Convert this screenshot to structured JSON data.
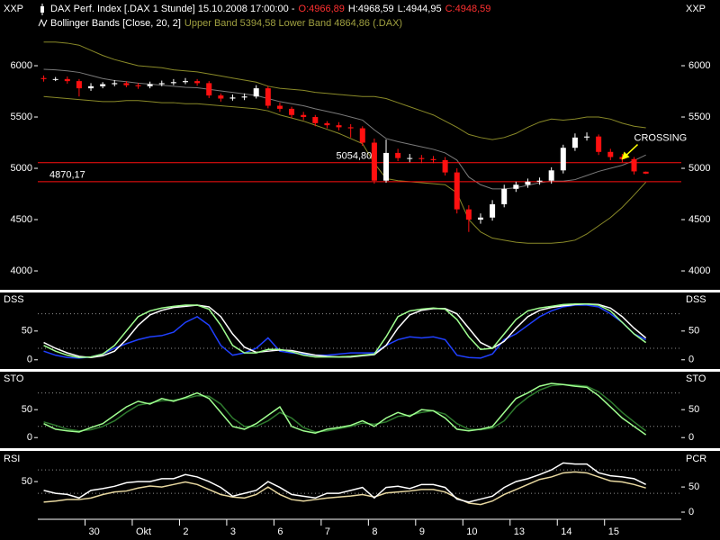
{
  "chart_data": [
    {
      "type": "candlestick",
      "title_parts": [
        "DAX Perf. Index [.DAX  1 Stunde] 15.10.2008 17:00:00 -",
        "O:4966,89",
        "H:4968,59",
        "L:4944,95",
        "C:4948,59"
      ],
      "title_colors": [
        "#ffffff",
        "#ff3030",
        "#ffffff",
        "#ffffff",
        "#ff3030"
      ],
      "subtitle_parts": [
        "Bollinger Bands [Close, 20, 2]",
        "Upper Band 5394,58 Lower Band 4864,86 (.DAX)"
      ],
      "subtitle_colors": [
        "#ffffff",
        "#a0a040"
      ],
      "axis_label": "XXP",
      "ylim": [
        3816,
        6623
      ],
      "yticks": [
        4000,
        4500,
        5000,
        5500,
        6000
      ],
      "up_color": "#ffffff",
      "down_color": "#ff1010",
      "open": [
        5880,
        5870,
        5870,
        5850,
        5780,
        5800,
        5820,
        5830,
        5810,
        5800,
        5820,
        5830,
        5840,
        5850,
        5830,
        5710,
        5680,
        5690,
        5700,
        5780,
        5610,
        5580,
        5520,
        5500,
        5440,
        5420,
        5400,
        5390,
        5250,
        4880,
        5150,
        5100,
        5100,
        5090,
        5080,
        4960,
        4600,
        4500,
        4520,
        4650,
        4800,
        4840,
        4870,
        4880,
        4980,
        5200,
        5300,
        5310,
        5160,
        5110,
        5090,
        4966.89
      ],
      "high": [
        5905,
        5890,
        5895,
        5870,
        5830,
        5840,
        5860,
        5850,
        5830,
        5845,
        5855,
        5870,
        5880,
        5870,
        5850,
        5730,
        5720,
        5730,
        5810,
        5800,
        5640,
        5600,
        5550,
        5520,
        5460,
        5450,
        5430,
        5410,
        5290,
        5280,
        5190,
        5140,
        5130,
        5120,
        5110,
        5000,
        4640,
        4560,
        4690,
        4840,
        4870,
        4900,
        4910,
        5010,
        5230,
        5340,
        5350,
        5330,
        5190,
        5140,
        5110,
        4968.59
      ],
      "low": [
        5845,
        5850,
        5825,
        5700,
        5755,
        5780,
        5800,
        5790,
        5775,
        5780,
        5800,
        5810,
        5820,
        5805,
        5685,
        5650,
        5660,
        5665,
        5680,
        5585,
        5550,
        5490,
        5470,
        5410,
        5390,
        5370,
        5300,
        5220,
        4850,
        4860,
        5070,
        5060,
        5050,
        5050,
        4930,
        4560,
        4380,
        4460,
        4490,
        4620,
        4770,
        4810,
        4840,
        4850,
        4950,
        5170,
        5270,
        5130,
        5080,
        5060,
        4940,
        4944.95
      ],
      "close": [
        5870,
        5870,
        5850,
        5780,
        5800,
        5820,
        5830,
        5810,
        5800,
        5820,
        5830,
        5840,
        5850,
        5830,
        5710,
        5680,
        5690,
        5700,
        5780,
        5610,
        5580,
        5520,
        5500,
        5440,
        5420,
        5400,
        5390,
        5250,
        4880,
        5150,
        5100,
        5100,
        5090,
        5080,
        4960,
        4600,
        4500,
        4520,
        4650,
        4800,
        4840,
        4870,
        4880,
        4980,
        5200,
        5300,
        5310,
        5160,
        5110,
        5090,
        4970,
        4948.59
      ],
      "bands": {
        "color": "#8a8a28",
        "middle_color": "#7a7a7a",
        "upper": [
          6230,
          6230,
          6220,
          6200,
          6150,
          6100,
          6060,
          6030,
          6000,
          5990,
          5980,
          5960,
          5950,
          5940,
          5920,
          5900,
          5880,
          5860,
          5840,
          5800,
          5780,
          5770,
          5760,
          5740,
          5730,
          5720,
          5710,
          5700,
          5700,
          5680,
          5640,
          5600,
          5560,
          5520,
          5460,
          5400,
          5330,
          5300,
          5280,
          5300,
          5340,
          5400,
          5450,
          5480,
          5470,
          5480,
          5500,
          5500,
          5480,
          5440,
          5410,
          5394.58
        ],
        "middle": [
          5965,
          5960,
          5950,
          5935,
          5905,
          5875,
          5855,
          5845,
          5830,
          5820,
          5810,
          5800,
          5790,
          5785,
          5770,
          5755,
          5740,
          5725,
          5710,
          5680,
          5650,
          5630,
          5610,
          5580,
          5555,
          5530,
          5500,
          5470,
          5375,
          5290,
          5260,
          5235,
          5210,
          5185,
          5150,
          5080,
          4915,
          4840,
          4800,
          4800,
          4810,
          4835,
          4860,
          4875,
          4875,
          4890,
          4930,
          4970,
          5000,
          5030,
          5075,
          5130
        ],
        "lower": [
          5700,
          5690,
          5680,
          5670,
          5660,
          5650,
          5650,
          5660,
          5660,
          5650,
          5640,
          5640,
          5630,
          5630,
          5620,
          5610,
          5600,
          5590,
          5580,
          5560,
          5520,
          5490,
          5460,
          5420,
          5380,
          5340,
          5290,
          5240,
          5050,
          4900,
          4880,
          4870,
          4860,
          4850,
          4840,
          4760,
          4500,
          4380,
          4320,
          4300,
          4280,
          4270,
          4270,
          4270,
          4280,
          4300,
          4360,
          4440,
          4520,
          4620,
          4740,
          4864.86
        ]
      },
      "hlines": [
        {
          "value": 5054.8,
          "label": "5054,80"
        },
        {
          "value": 4870.17,
          "label": "4870,17"
        }
      ],
      "hline_color": "#ff1010",
      "annotations": [
        {
          "text": "CROSSING",
          "x": 50,
          "y": 5250,
          "color": "#ffff00"
        }
      ]
    },
    {
      "type": "line",
      "label": "DSS",
      "ylim": [
        -16,
        117
      ],
      "yticks": [
        0,
        50
      ],
      "reference_lines": [
        20,
        80
      ],
      "series": [
        {
          "color": "#2040ff",
          "values": [
            15,
            8,
            4,
            3,
            5,
            10,
            20,
            28,
            35,
            40,
            42,
            48,
            65,
            75,
            60,
            25,
            8,
            12,
            20,
            38,
            15,
            12,
            10,
            8,
            8,
            10,
            12,
            12,
            12,
            25,
            35,
            40,
            38,
            40,
            35,
            8,
            4,
            3,
            10,
            35,
            45,
            60,
            75,
            85,
            92,
            95,
            95,
            92,
            80,
            65,
            45,
            35
          ]
        },
        {
          "color": "#ffffff",
          "values": [
            30,
            20,
            12,
            6,
            4,
            7,
            15,
            35,
            60,
            78,
            86,
            91,
            93,
            95,
            92,
            75,
            45,
            22,
            13,
            15,
            17,
            16,
            12,
            8,
            6,
            5,
            5,
            7,
            9,
            25,
            55,
            78,
            86,
            89,
            89,
            80,
            55,
            30,
            20,
            32,
            55,
            75,
            86,
            91,
            94,
            96,
            97,
            96,
            90,
            75,
            55,
            38
          ]
        },
        {
          "color": "#a0ff90",
          "values": [
            25,
            15,
            8,
            4,
            5,
            10,
            25,
            50,
            75,
            85,
            90,
            93,
            95,
            95,
            88,
            60,
            25,
            12,
            12,
            18,
            18,
            14,
            8,
            5,
            5,
            5,
            6,
            8,
            10,
            40,
            75,
            85,
            88,
            90,
            88,
            70,
            40,
            18,
            20,
            45,
            70,
            85,
            90,
            93,
            96,
            97,
            97,
            95,
            85,
            65,
            45,
            30
          ]
        }
      ]
    },
    {
      "type": "line",
      "label": "STO",
      "ylim": [
        -19,
        118
      ],
      "yticks": [
        0,
        50
      ],
      "reference_lines": [
        20,
        80
      ],
      "series": [
        {
          "color": "#2e7a2e",
          "values": [
            28,
            22,
            15,
            12,
            14,
            20,
            30,
            45,
            58,
            62,
            66,
            67,
            70,
            75,
            74,
            60,
            35,
            20,
            20,
            30,
            45,
            35,
            18,
            10,
            12,
            16,
            20,
            26,
            24,
            28,
            38,
            40,
            45,
            48,
            42,
            25,
            15,
            14,
            17,
            30,
            55,
            72,
            85,
            93,
            95,
            94,
            92,
            82,
            65,
            45,
            28,
            12
          ]
        },
        {
          "color": "#a0ff90",
          "values": [
            25,
            15,
            12,
            10,
            18,
            25,
            40,
            55,
            65,
            60,
            70,
            65,
            72,
            80,
            70,
            45,
            20,
            15,
            25,
            40,
            55,
            20,
            12,
            8,
            15,
            18,
            22,
            30,
            20,
            35,
            45,
            38,
            50,
            48,
            35,
            15,
            12,
            15,
            20,
            45,
            70,
            80,
            92,
            97,
            95,
            92,
            90,
            75,
            55,
            35,
            20,
            5
          ]
        }
      ]
    },
    {
      "type": "line",
      "label": "RSI",
      "y2_label": "PCR",
      "ylim": [
        -13,
        101
      ],
      "yticks": [
        50
      ],
      "reference_lines": [
        30,
        70
      ],
      "y2lim": [
        -12.5,
        120
      ],
      "y2ticks": [
        0,
        50
      ],
      "xlim": [
        -0.5,
        54
      ],
      "xticks": [
        {
          "value": 3.5,
          "label": "30"
        },
        {
          "value": 7.5,
          "label": "Okt"
        },
        {
          "value": 11.5,
          "label": "2"
        },
        {
          "value": 15.5,
          "label": "3"
        },
        {
          "value": 19.5,
          "label": "6"
        },
        {
          "value": 23.5,
          "label": "7"
        },
        {
          "value": 27.5,
          "label": "8"
        },
        {
          "value": 31.5,
          "label": "9"
        },
        {
          "value": 35.5,
          "label": "10"
        },
        {
          "value": 39.5,
          "label": "13"
        },
        {
          "value": 43.5,
          "label": "14"
        },
        {
          "value": 47.5,
          "label": "15"
        }
      ],
      "series": [
        {
          "color": "#e8d8a0",
          "axis": "y2",
          "values": [
            20,
            22,
            25,
            25,
            28,
            35,
            40,
            42,
            48,
            52,
            50,
            55,
            60,
            55,
            45,
            35,
            30,
            28,
            35,
            50,
            35,
            25,
            22,
            25,
            28,
            30,
            32,
            35,
            30,
            38,
            40,
            42,
            45,
            45,
            40,
            28,
            18,
            15,
            22,
            35,
            45,
            55,
            65,
            70,
            78,
            80,
            78,
            70,
            62,
            60,
            55,
            48
          ]
        },
        {
          "color": "#ffffff",
          "values": [
            35,
            30,
            28,
            22,
            35,
            38,
            42,
            48,
            50,
            50,
            55,
            55,
            62,
            58,
            50,
            40,
            25,
            30,
            35,
            50,
            40,
            28,
            25,
            22,
            30,
            30,
            35,
            40,
            22,
            40,
            42,
            38,
            45,
            45,
            40,
            20,
            15,
            20,
            25,
            40,
            50,
            55,
            62,
            70,
            82,
            80,
            80,
            65,
            60,
            58,
            55,
            45
          ]
        }
      ]
    }
  ]
}
